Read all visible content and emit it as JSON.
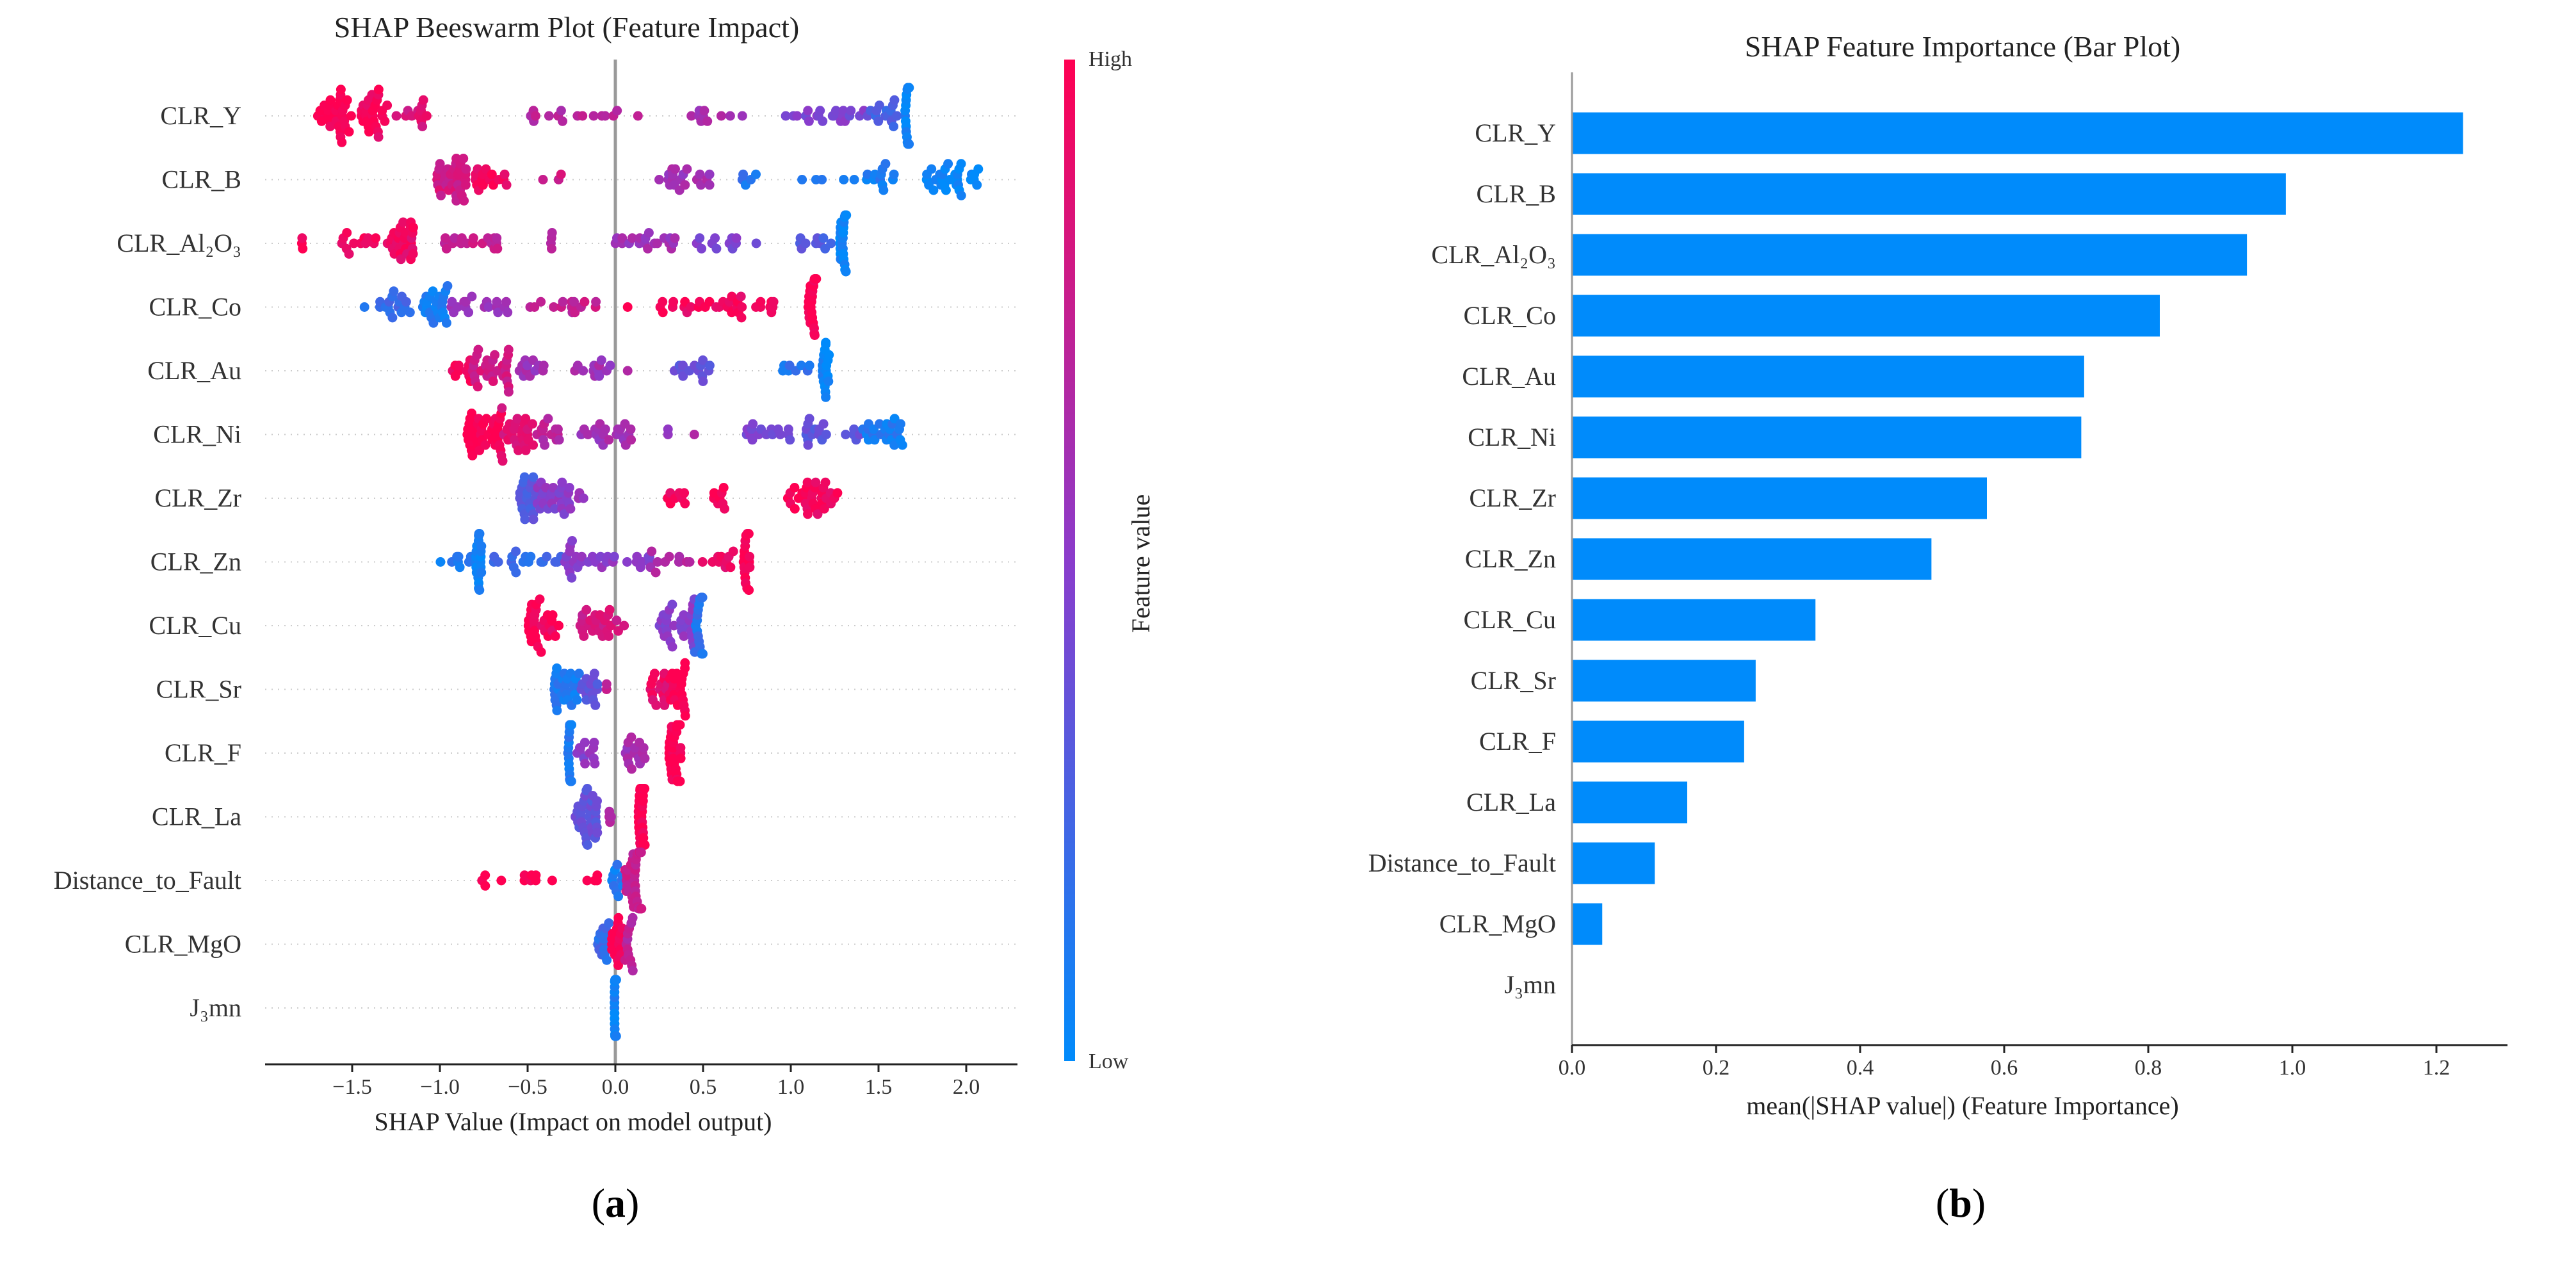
{
  "chart_data": [
    {
      "type": "scatter",
      "subtype": "beeswarm",
      "title": "SHAP Beeswarm Plot (Feature Impact)",
      "xlabel": "SHAP Value (Impact on model output)",
      "xlim": [
        -1.95,
        2.35
      ],
      "xticks": [
        "−1.5",
        "−1.0",
        "−0.5",
        "0.0",
        "0.5",
        "1.0",
        "1.5",
        "2.0"
      ],
      "xtick_values": [
        -1.5,
        -1.0,
        -0.5,
        0.0,
        0.5,
        1.0,
        1.5,
        2.0
      ],
      "colorbar": {
        "label": "Feature value",
        "high": "High",
        "low": "Low",
        "low_color": "#008bfb",
        "high_color": "#ff0052"
      },
      "panel_label": "a",
      "cluster_format": "[shap_min, shap_max, point_count, feature_value_0_to_1]",
      "features": [
        {
          "name": "CLR_Y",
          "clusters": [
            [
              -1.72,
              -1.5,
              30,
              1.0
            ],
            [
              -1.45,
              -1.3,
              26,
              0.95
            ],
            [
              -1.25,
              -1.03,
              12,
              0.85
            ],
            [
              -0.55,
              0.15,
              16,
              0.7
            ],
            [
              0.4,
              0.75,
              10,
              0.6
            ],
            [
              0.95,
              1.45,
              22,
              0.45
            ],
            [
              1.45,
              1.62,
              14,
              0.25
            ],
            [
              1.65,
              1.68,
              20,
              0.05
            ]
          ]
        },
        {
          "name": "CLR_B",
          "clusters": [
            [
              -1.02,
              -0.85,
              34,
              0.8
            ],
            [
              -0.8,
              -0.6,
              16,
              0.95
            ],
            [
              -0.42,
              -0.3,
              3,
              0.8
            ],
            [
              0.2,
              0.55,
              20,
              0.6
            ],
            [
              0.65,
              1.2,
              8,
              0.15
            ],
            [
              1.3,
              1.6,
              14,
              0.1
            ],
            [
              1.75,
              2.1,
              30,
              0.02
            ]
          ]
        },
        {
          "name": "CLR_Al₂O₃",
          "clusters": [
            [
              -1.8,
              -1.78,
              3,
              1.0
            ],
            [
              -1.6,
              -1.35,
              12,
              0.95
            ],
            [
              -1.3,
              -1.15,
              28,
              0.92
            ],
            [
              -1.0,
              -0.65,
              18,
              0.75
            ],
            [
              -0.4,
              -0.35,
              4,
              0.7
            ],
            [
              0.0,
              0.35,
              20,
              0.6
            ],
            [
              0.45,
              0.85,
              12,
              0.45
            ],
            [
              1.05,
              1.25,
              10,
              0.3
            ],
            [
              1.28,
              1.32,
              24,
              0.05
            ]
          ]
        },
        {
          "name": "CLR_Co",
          "clusters": [
            [
              -1.43,
              -1.42,
              1,
              0.05
            ],
            [
              -1.35,
              -1.15,
              16,
              0.2
            ],
            [
              -1.1,
              -0.95,
              24,
              0.1
            ],
            [
              -0.95,
              -0.6,
              18,
              0.55
            ],
            [
              -0.5,
              -0.1,
              16,
              0.75
            ],
            [
              0.07,
              0.08,
              1,
              1.0
            ],
            [
              0.25,
              0.95,
              34,
              0.95
            ],
            [
              1.1,
              1.15,
              22,
              1.0
            ]
          ]
        },
        {
          "name": "CLR_Au",
          "clusters": [
            [
              -0.95,
              -0.82,
              10,
              0.95
            ],
            [
              -0.82,
              -0.6,
              30,
              0.8
            ],
            [
              -0.55,
              -0.4,
              12,
              0.6
            ],
            [
              -0.25,
              0.0,
              12,
              0.6
            ],
            [
              0.07,
              0.08,
              1,
              0.6
            ],
            [
              0.33,
              0.55,
              14,
              0.35
            ],
            [
              0.95,
              1.15,
              8,
              0.15
            ],
            [
              1.18,
              1.22,
              18,
              0.05
            ]
          ]
        },
        {
          "name": "CLR_Ni",
          "clusters": [
            [
              -0.85,
              -0.65,
              36,
              1.0
            ],
            [
              -0.65,
              -0.45,
              26,
              0.85
            ],
            [
              -0.45,
              -0.3,
              14,
              0.7
            ],
            [
              -0.2,
              0.12,
              22,
              0.6
            ],
            [
              0.3,
              0.3,
              2,
              0.55
            ],
            [
              0.45,
              0.46,
              1,
              0.6
            ],
            [
              0.7,
              1.0,
              16,
              0.45
            ],
            [
              1.05,
              1.4,
              18,
              0.35
            ],
            [
              1.4,
              1.65,
              24,
              0.1
            ]
          ]
        },
        {
          "name": "CLR_Zr",
          "clusters": [
            [
              -0.55,
              -0.45,
              20,
              0.3
            ],
            [
              -0.45,
              -0.25,
              26,
              0.5
            ],
            [
              -0.22,
              -0.18,
              3,
              0.6
            ],
            [
              0.28,
              0.4,
              8,
              0.95
            ],
            [
              0.55,
              0.65,
              8,
              1.0
            ],
            [
              0.95,
              1.08,
              8,
              1.0
            ],
            [
              1.08,
              1.28,
              24,
              0.95
            ]
          ]
        },
        {
          "name": "CLR_Zn",
          "clusters": [
            [
              -1.0,
              -0.82,
              8,
              0.1
            ],
            [
              -0.8,
              -0.76,
              20,
              0.05
            ],
            [
              -0.7,
              -0.3,
              18,
              0.2
            ],
            [
              -0.3,
              0.2,
              30,
              0.5
            ],
            [
              0.2,
              0.45,
              10,
              0.65
            ],
            [
              0.45,
              0.7,
              10,
              0.9
            ],
            [
              0.73,
              0.77,
              18,
              1.0
            ]
          ]
        },
        {
          "name": "CLR_Cu",
          "clusters": [
            [
              -0.5,
              -0.45,
              16,
              1.0
            ],
            [
              -0.45,
              -0.28,
              14,
              0.95
            ],
            [
              -0.2,
              0.02,
              24,
              0.8
            ],
            [
              0.05,
              0.05,
              1,
              0.8
            ],
            [
              0.25,
              0.45,
              30,
              0.5
            ],
            [
              0.45,
              0.5,
              18,
              0.15
            ]
          ]
        },
        {
          "name": "CLR_Sr",
          "clusters": [
            [
              -0.35,
              -0.2,
              28,
              0.1
            ],
            [
              -0.2,
              -0.1,
              14,
              0.35
            ],
            [
              -0.05,
              -0.05,
              2,
              0.7
            ],
            [
              0.2,
              0.3,
              16,
              0.9
            ],
            [
              0.3,
              0.4,
              22,
              1.0
            ]
          ]
        },
        {
          "name": "CLR_F",
          "clusters": [
            [
              -0.27,
              -0.25,
              22,
              0.1
            ],
            [
              -0.25,
              -0.1,
              12,
              0.5
            ],
            [
              0.05,
              0.2,
              16,
              0.6
            ],
            [
              0.3,
              0.38,
              30,
              1.0
            ]
          ]
        },
        {
          "name": "CLR_La",
          "clusters": [
            [
              -0.23,
              -0.1,
              34,
              0.35
            ],
            [
              -0.05,
              -0.02,
              4,
              0.7
            ],
            [
              0.13,
              0.17,
              36,
              1.0
            ]
          ]
        },
        {
          "name": "Distance_to_Fault",
          "clusters": [
            [
              -0.76,
              -0.74,
              3,
              1.0
            ],
            [
              -0.65,
              -0.64,
              1,
              1.0
            ],
            [
              -0.52,
              -0.45,
              6,
              1.0
            ],
            [
              -0.36,
              -0.35,
              1,
              1.0
            ],
            [
              -0.17,
              -0.1,
              4,
              1.0
            ],
            [
              -0.02,
              0.05,
              10,
              0.1
            ],
            [
              0.05,
              0.15,
              34,
              0.75
            ]
          ]
        },
        {
          "name": "CLR_MgO",
          "clusters": [
            [
              -0.1,
              -0.02,
              14,
              0.2
            ],
            [
              -0.02,
              0.05,
              16,
              1.0
            ],
            [
              0.05,
              0.1,
              12,
              0.7
            ]
          ]
        },
        {
          "name": "J₃mn",
          "clusters": [
            [
              -0.005,
              0.005,
              40,
              0.05
            ]
          ]
        }
      ]
    },
    {
      "type": "bar",
      "orientation": "horizontal",
      "title": "SHAP Feature Importance (Bar Plot)",
      "xlabel": "mean(|SHAP value|) (Feature Importance)",
      "xlim": [
        0,
        1.3
      ],
      "xticks": [
        "0.0",
        "0.2",
        "0.4",
        "0.6",
        "0.8",
        "1.0",
        "1.2"
      ],
      "xtick_values": [
        0,
        0.2,
        0.4,
        0.6,
        0.8,
        1.0,
        1.2
      ],
      "bar_color": "#008bfb",
      "panel_label": "b",
      "categories": [
        "CLR_Y",
        "CLR_B",
        "CLR_Al₂O₃",
        "CLR_Co",
        "CLR_Au",
        "CLR_Ni",
        "CLR_Zr",
        "CLR_Zn",
        "CLR_Cu",
        "CLR_Sr",
        "CLR_F",
        "CLR_La",
        "Distance_to_Fault",
        "CLR_MgO",
        "J₃mn"
      ],
      "values": [
        1.237,
        0.991,
        0.937,
        0.816,
        0.711,
        0.707,
        0.576,
        0.499,
        0.338,
        0.255,
        0.239,
        0.16,
        0.115,
        0.042,
        0.0
      ]
    }
  ]
}
